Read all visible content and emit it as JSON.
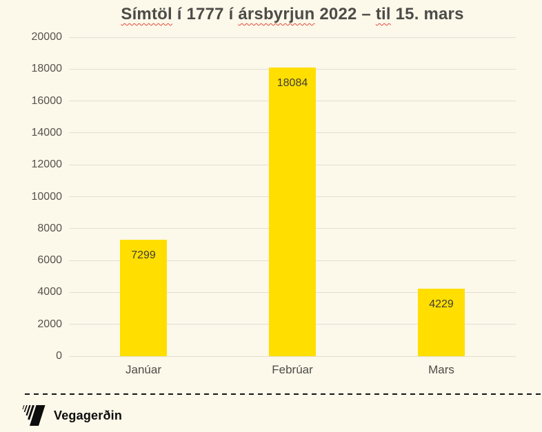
{
  "title": {
    "full_text": "Símtöl í 1777 í ársbyrjun 2022 – til 15. mars",
    "segments": [
      {
        "text": "Símtöl",
        "misspelled": true
      },
      {
        "text": " í 1777 í ",
        "misspelled": false
      },
      {
        "text": "ársbyrjun",
        "misspelled": true
      },
      {
        "text": " 2022 – ",
        "misspelled": false
      },
      {
        "text": "til",
        "misspelled": true
      },
      {
        "text": " 15. mars",
        "misspelled": false
      }
    ]
  },
  "chart_data": {
    "type": "bar",
    "categories": [
      "Janúar",
      "Febrúar",
      "Mars"
    ],
    "values": [
      7299,
      18084,
      4229
    ],
    "title": "Símtöl í 1777 í ársbyrjun 2022 – til 15. mars",
    "xlabel": "",
    "ylabel": "",
    "ylim": [
      0,
      20000
    ],
    "ytick_step": 2000,
    "ytick_labels": [
      "0",
      "2000",
      "4000",
      "6000",
      "8000",
      "10000",
      "12000",
      "14000",
      "16000",
      "18000",
      "20000"
    ],
    "grid": true,
    "legend": false,
    "data_labels_inside_bar_top": true
  },
  "footer": {
    "brand": "Vegagerðin"
  },
  "colors": {
    "background": "#FCF8EA",
    "bar": "#FFDE00",
    "gridline": "#E2DFD2",
    "title_text": "#4C4B47",
    "axis_text": "#55534E",
    "spellcheck_squiggle": "#E3483A",
    "separator": "#141414",
    "logo": "#0D0D0D"
  }
}
